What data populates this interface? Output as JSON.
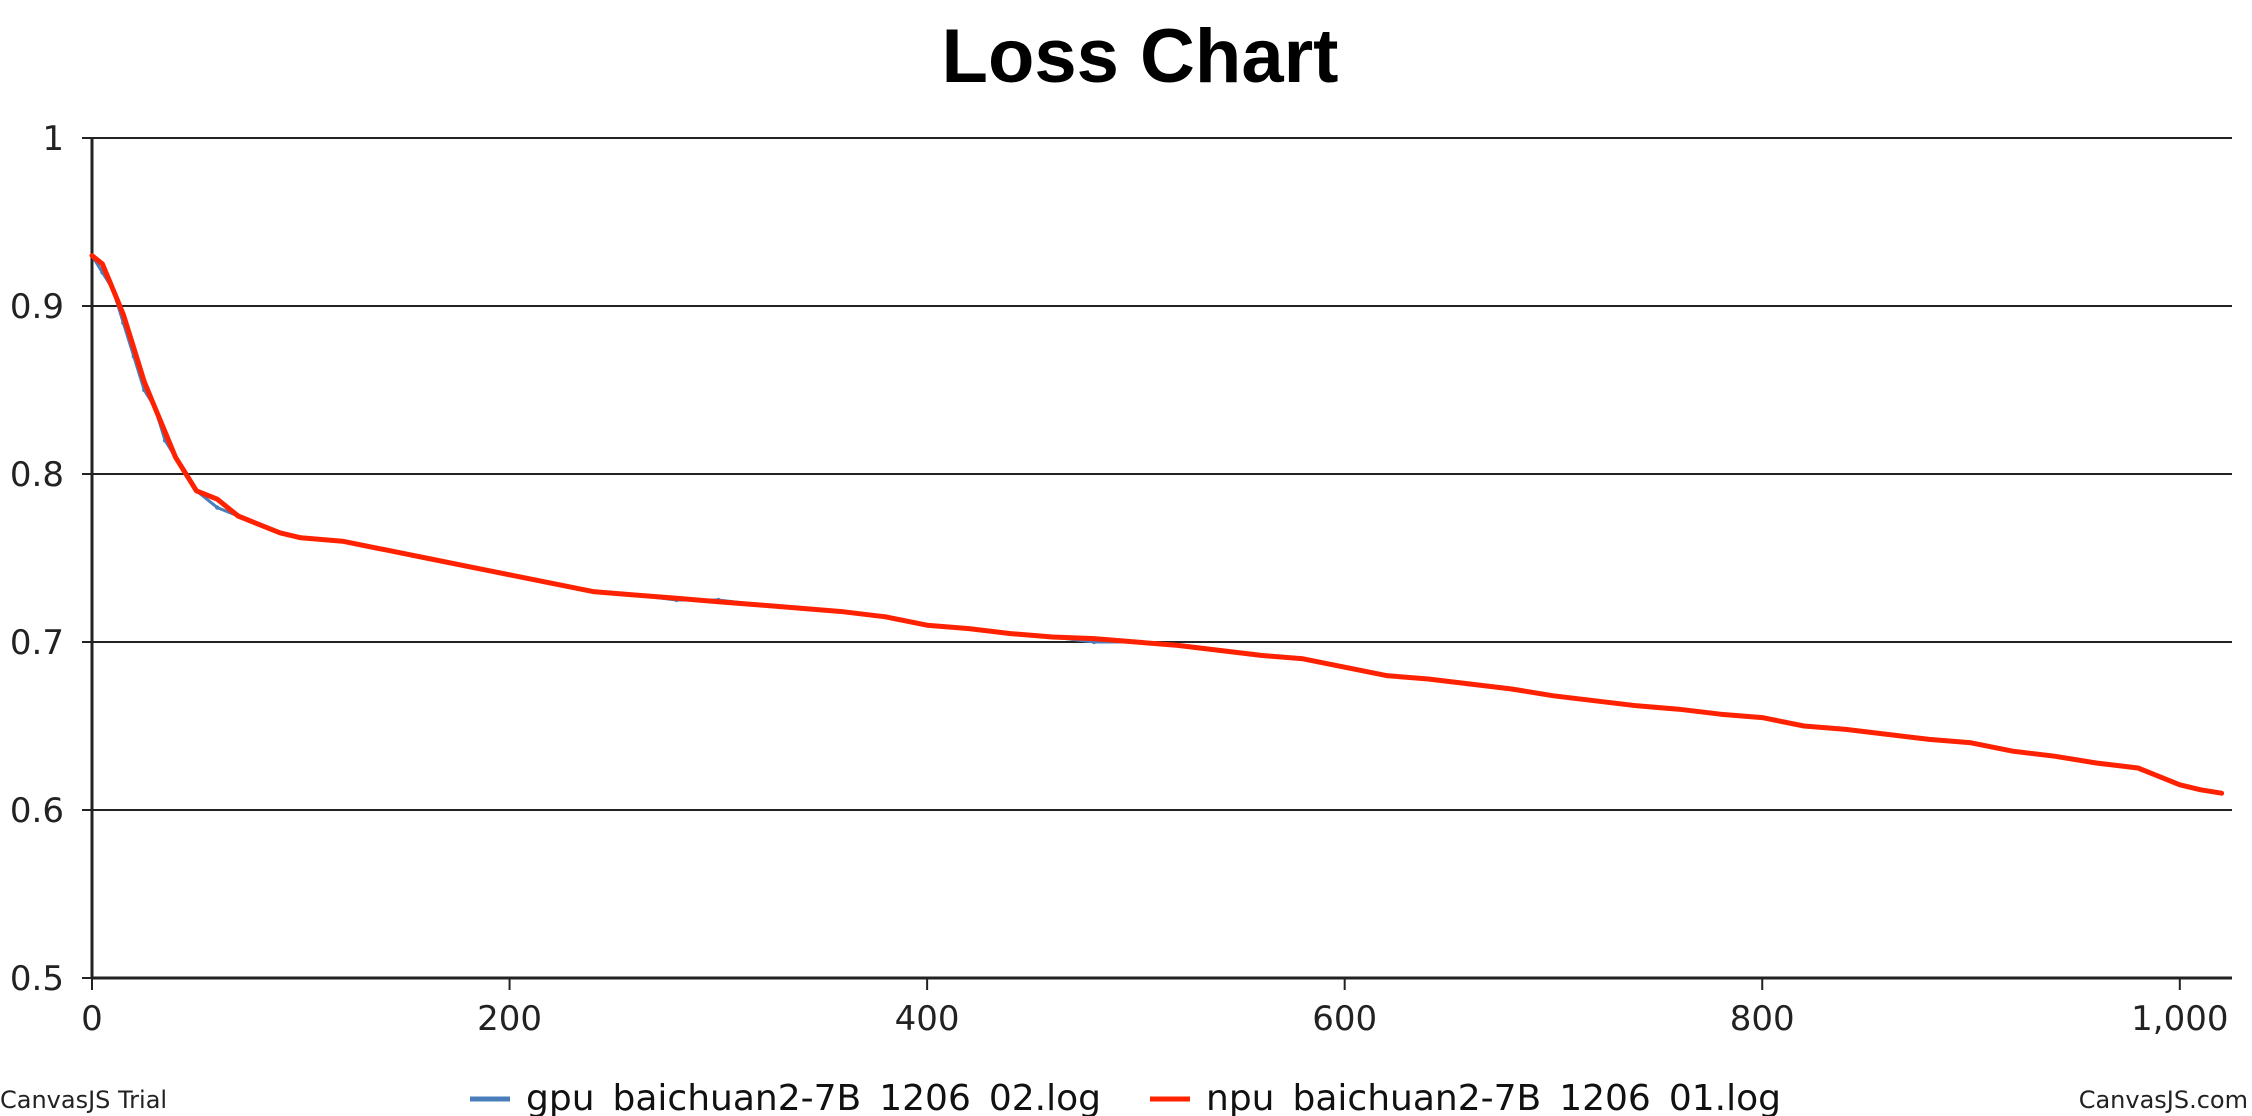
{
  "chart_data": {
    "type": "line",
    "title": "Loss Chart",
    "xlabel": "",
    "ylabel": "",
    "xlim": [
      0,
      1025
    ],
    "ylim": [
      0.5,
      1.0
    ],
    "x_ticks": [
      0,
      200,
      400,
      600,
      800,
      1000
    ],
    "x_tick_labels": [
      "0",
      "200",
      "400",
      "600",
      "800",
      "1,000"
    ],
    "y_ticks": [
      0.5,
      0.6,
      0.7,
      0.8,
      0.9,
      1.0
    ],
    "y_tick_labels": [
      "0.5",
      "0.6",
      "0.7",
      "0.8",
      "0.9",
      "1"
    ],
    "grid": true,
    "legend_position": "bottom-center",
    "series": [
      {
        "name": "gpu_baichuan2-7B_1206_02.log",
        "color": "#4a7ebb",
        "x": [
          0,
          5,
          10,
          15,
          20,
          25,
          30,
          35,
          40,
          45,
          50,
          60,
          70,
          80,
          90,
          100,
          120,
          140,
          160,
          180,
          200,
          220,
          240,
          260,
          280,
          300,
          320,
          340,
          360,
          380,
          400,
          420,
          440,
          460,
          480,
          500,
          520,
          540,
          560,
          580,
          600,
          620,
          640,
          660,
          680,
          700,
          720,
          740,
          760,
          780,
          800,
          820,
          840,
          860,
          880,
          900,
          920,
          940,
          960,
          980,
          1000,
          1010,
          1020
        ],
        "y": [
          0.93,
          0.92,
          0.91,
          0.89,
          0.87,
          0.85,
          0.84,
          0.82,
          0.81,
          0.8,
          0.79,
          0.78,
          0.775,
          0.77,
          0.765,
          0.762,
          0.76,
          0.755,
          0.75,
          0.745,
          0.74,
          0.735,
          0.73,
          0.728,
          0.725,
          0.725,
          0.722,
          0.72,
          0.718,
          0.715,
          0.71,
          0.708,
          0.705,
          0.703,
          0.7,
          0.7,
          0.698,
          0.695,
          0.692,
          0.69,
          0.685,
          0.68,
          0.678,
          0.675,
          0.672,
          0.668,
          0.665,
          0.662,
          0.66,
          0.657,
          0.655,
          0.65,
          0.648,
          0.645,
          0.642,
          0.64,
          0.635,
          0.632,
          0.628,
          0.625,
          0.615,
          0.612,
          0.61
        ]
      },
      {
        "name": "npu_baichuan2-7B_1206_01.log",
        "color": "#ff2200",
        "x": [
          0,
          5,
          10,
          15,
          20,
          25,
          30,
          35,
          40,
          45,
          50,
          60,
          70,
          80,
          90,
          100,
          120,
          140,
          160,
          180,
          200,
          220,
          240,
          260,
          280,
          300,
          320,
          340,
          360,
          380,
          400,
          420,
          440,
          460,
          480,
          500,
          520,
          540,
          560,
          580,
          600,
          620,
          640,
          660,
          680,
          700,
          720,
          740,
          760,
          780,
          800,
          820,
          840,
          860,
          880,
          900,
          920,
          940,
          960,
          980,
          1000,
          1010,
          1020
        ],
        "y": [
          0.93,
          0.925,
          0.91,
          0.895,
          0.875,
          0.855,
          0.84,
          0.825,
          0.81,
          0.8,
          0.79,
          0.785,
          0.775,
          0.77,
          0.765,
          0.762,
          0.76,
          0.755,
          0.75,
          0.745,
          0.74,
          0.735,
          0.73,
          0.728,
          0.726,
          0.724,
          0.722,
          0.72,
          0.718,
          0.715,
          0.71,
          0.708,
          0.705,
          0.703,
          0.702,
          0.7,
          0.698,
          0.695,
          0.692,
          0.69,
          0.685,
          0.68,
          0.678,
          0.675,
          0.672,
          0.668,
          0.665,
          0.662,
          0.66,
          0.657,
          0.655,
          0.65,
          0.648,
          0.645,
          0.642,
          0.64,
          0.635,
          0.632,
          0.628,
          0.625,
          0.615,
          0.612,
          0.61
        ]
      }
    ]
  },
  "footer": {
    "left_text": "CanvasJS Trial",
    "right_text": "CanvasJS.com"
  }
}
